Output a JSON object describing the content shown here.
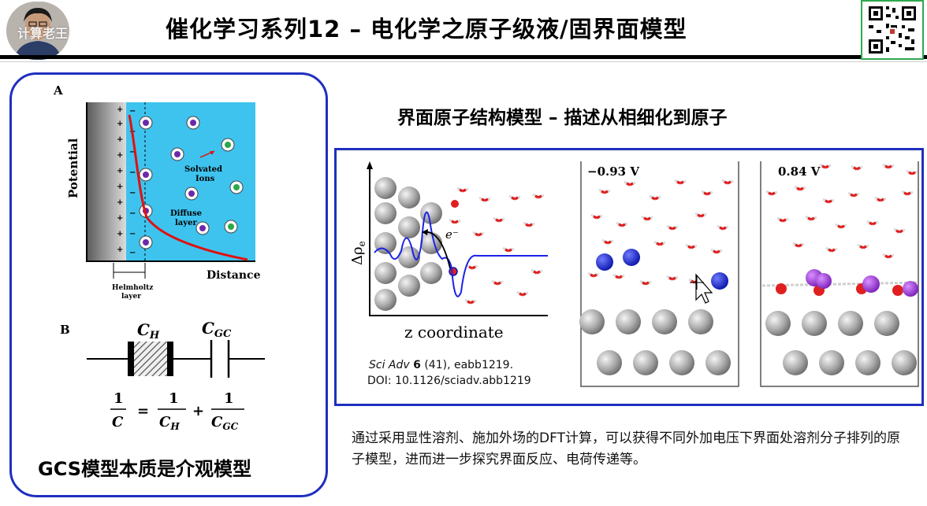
{
  "header": {
    "title": "催化学习系列12 – 电化学之原子级液/固界面模型",
    "watermark": "计算老王"
  },
  "left_panel": {
    "panel_a": {
      "label": "A",
      "y_axis": "Potential",
      "x_axis": "Distance",
      "solvated_ions": [
        "Solvated",
        "Ions"
      ],
      "diffuse_layer": [
        "Diffuse",
        "layer"
      ],
      "helmholtz_layer": [
        "Helmholtz",
        "layer"
      ],
      "plus_sign": "+",
      "minus_sign": "−"
    },
    "panel_b": {
      "label": "B",
      "c_h_label": "C",
      "c_h_sub": "H",
      "c_gc_label": "C",
      "c_gc_sub": "GC",
      "eq_num": "1",
      "eq_c": "C",
      "eq_equals": "=",
      "eq_plus": "+"
    },
    "caption": "GCS模型本质是介观模型"
  },
  "right_panel": {
    "heading": "界面原子结构模型 – 描述从相细化到原子",
    "plot": {
      "y_label": "Δρ",
      "y_label_sub": "e",
      "x_label": "z coordinate",
      "electron": "e⁻"
    },
    "potential_1": "−0.93 V",
    "potential_2": "0.84 V",
    "reference": {
      "journal": "Sci Adv",
      "volume": "6",
      "details": " (41), eabb1219.",
      "doi": "DOI: 10.1126/sciadv.abb1219"
    }
  },
  "description": "通过采用显性溶剂、施加外场的DFT计算，可以获得不同外加电压下界面处溶剂分子排列的原子模型，进而进一步探究界面反应、电荷传递等。",
  "colors": {
    "accent_blue": "#1f2fbf",
    "curve_red": "#e01010",
    "solution_cyan": "#3ec3ee",
    "qr_border": "#2fa84f"
  }
}
